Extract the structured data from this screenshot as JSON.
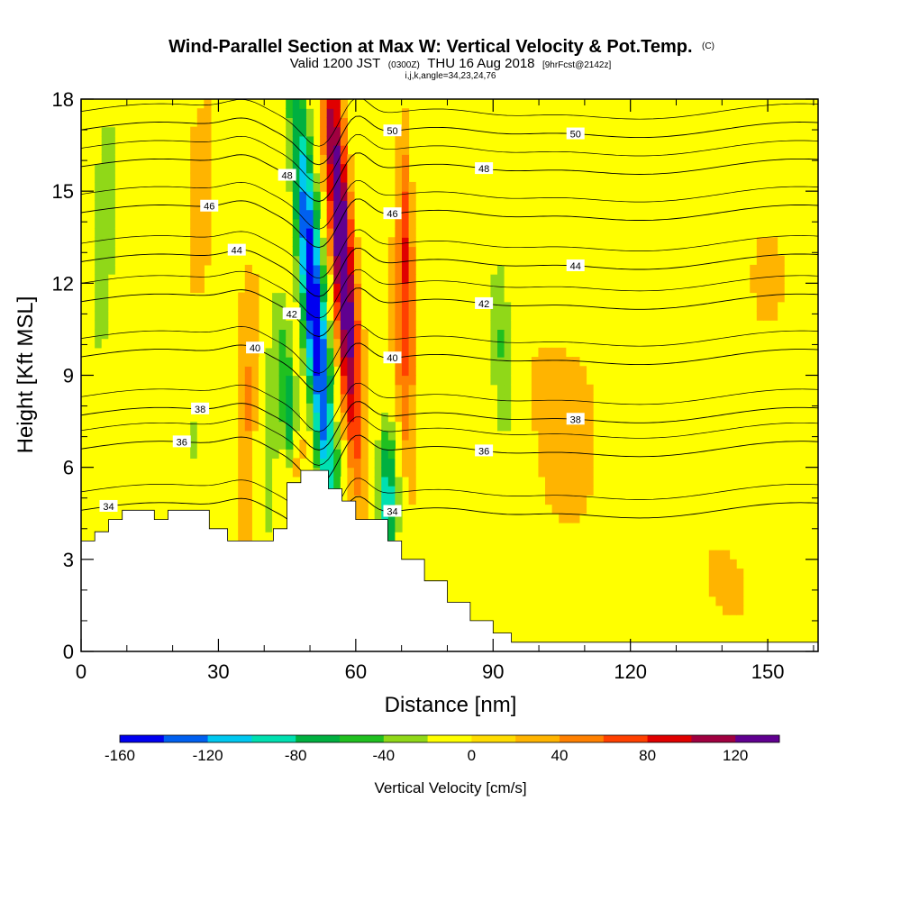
{
  "chart_data": {
    "type": "heatmap",
    "title": "Wind-Parallel Section at Max W: Vertical Velocity & Pot.Temp.",
    "title_mark": "(C)",
    "subtitle": {
      "valid": "Valid 1200 JST",
      "utc": "(0300Z)",
      "date": "THU 16 Aug 2018",
      "fcst": "[9hrFcst@2142z]"
    },
    "params": "i,j,k,angle=34,23,24,76",
    "xlabel": "Distance [nm]",
    "ylabel": "Height [Kft MSL]",
    "xlim": [
      0,
      161
    ],
    "ylim": [
      0,
      18
    ],
    "xticks": [
      "0",
      "30",
      "60",
      "90",
      "120",
      "150"
    ],
    "xtick_values": [
      0,
      30,
      60,
      90,
      120,
      150
    ],
    "yticks": [
      "0",
      "3",
      "6",
      "9",
      "12",
      "15",
      "18"
    ],
    "ytick_values": [
      0,
      3,
      6,
      9,
      12,
      15,
      18
    ],
    "colorbar": {
      "label": "Vertical Velocity [cm/s]",
      "min": -160,
      "max": 140,
      "step": 20,
      "tick_labels": [
        "-160",
        "-120",
        "-80",
        "-40",
        "0",
        "40",
        "80",
        "120"
      ],
      "tick_values": [
        -160,
        -120,
        -80,
        -40,
        0,
        40,
        80,
        120
      ],
      "colors": [
        "#0000f0",
        "#0060f0",
        "#00c8f0",
        "#00e0b0",
        "#00b040",
        "#20c020",
        "#90d818",
        "#ffff00",
        "#ffdc00",
        "#ffb400",
        "#ff8000",
        "#ff4000",
        "#e00000",
        "#a00040",
        "#600090"
      ]
    },
    "theta_contours": [
      {
        "value": 34,
        "label": "34",
        "base": 4.6
      },
      {
        "value": 36,
        "label": "36",
        "base": 6.6
      },
      {
        "value": 38,
        "label": "38",
        "base": 7.7
      },
      {
        "value": 40,
        "label": "40",
        "base": 9.6
      },
      {
        "value": 42,
        "label": "42",
        "base": 11.4
      },
      {
        "value": 44,
        "label": "44",
        "base": 12.7
      },
      {
        "value": 46,
        "label": "46",
        "base": 14.3
      },
      {
        "value": 48,
        "label": "48",
        "base": 15.8
      },
      {
        "value": 50,
        "label": "50",
        "base": 17.0
      }
    ],
    "terrain": [
      {
        "x": 0,
        "h": 3.6
      },
      {
        "x": 3,
        "h": 3.9
      },
      {
        "x": 6,
        "h": 4.3
      },
      {
        "x": 9,
        "h": 4.6
      },
      {
        "x": 16,
        "h": 4.3
      },
      {
        "x": 19,
        "h": 4.6
      },
      {
        "x": 28,
        "h": 4.0
      },
      {
        "x": 32,
        "h": 3.6
      },
      {
        "x": 42,
        "h": 4.0
      },
      {
        "x": 45,
        "h": 5.5
      },
      {
        "x": 48,
        "h": 5.9
      },
      {
        "x": 54,
        "h": 5.3
      },
      {
        "x": 57,
        "h": 4.9
      },
      {
        "x": 60,
        "h": 4.3
      },
      {
        "x": 67,
        "h": 3.6
      },
      {
        "x": 70,
        "h": 3.0
      },
      {
        "x": 75,
        "h": 2.3
      },
      {
        "x": 80,
        "h": 1.6
      },
      {
        "x": 85,
        "h": 1.0
      },
      {
        "x": 90,
        "h": 0.6
      },
      {
        "x": 94,
        "h": 0.3
      },
      {
        "x": 161,
        "h": 0.3
      }
    ]
  }
}
